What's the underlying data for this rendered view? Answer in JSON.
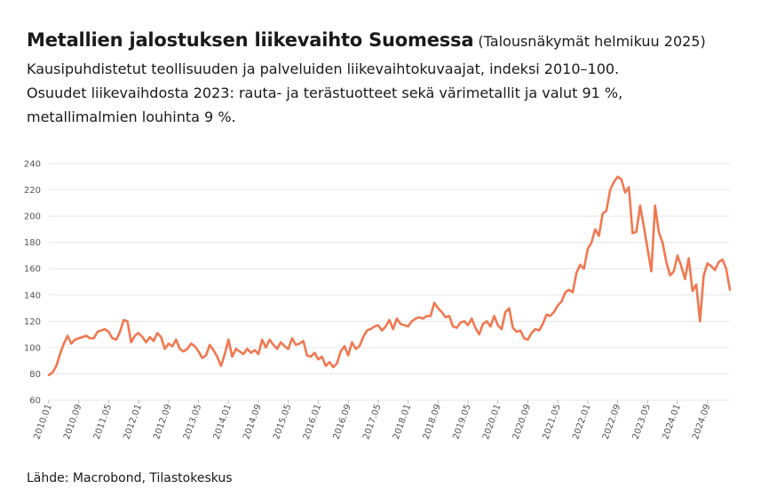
{
  "title": "Metallien jalostuksen liikevaihto Suomessa",
  "title_note": "(Talousnäkymät helmikuu 2025)",
  "subtitle_lines": [
    "Kausipuhdistetut teollisuuden ja palveluiden liikevaihtokuvaajat, indeksi 2010–100.",
    "Osuudet liikevaihdosta 2023: rauta- ja terästuotteet sekä värimetallit ja valut 91 %,",
    "metallimalmien louhinta 9 %."
  ],
  "footer": "Lähde: Macrobond, Tilastokeskus",
  "chart_data": {
    "type": "line",
    "line_color": "#f07850",
    "grid_color": "#e6e6e6",
    "grid": true,
    "ylim": [
      60,
      240
    ],
    "yticks": [
      60,
      80,
      100,
      120,
      140,
      160,
      180,
      200,
      220,
      240
    ],
    "xticks": [
      "2010.01",
      "2010.09",
      "2011.05",
      "2012.01",
      "2012.09",
      "2013.05",
      "2014.01",
      "2014.09",
      "2015.05",
      "2016.01",
      "2016.09",
      "2017.05",
      "2018.01",
      "2018.09",
      "2019.05",
      "2020.01",
      "2020.09",
      "2021.05",
      "2022.01",
      "2022.09",
      "2023.05",
      "2024.01",
      "2024.09"
    ],
    "x_start": "2010.01",
    "values": [
      79,
      81,
      86,
      95,
      103,
      109,
      103,
      106,
      107,
      108,
      109,
      107,
      107,
      112,
      113,
      114,
      112,
      107,
      106,
      112,
      121,
      120,
      104,
      109,
      111,
      108,
      104,
      108,
      105,
      111,
      108,
      99,
      103,
      101,
      106,
      99,
      97,
      99,
      103,
      101,
      97,
      92,
      94,
      102,
      98,
      93,
      86,
      95,
      106,
      93,
      99,
      97,
      95,
      99,
      96,
      98,
      95,
      106,
      100,
      106,
      102,
      99,
      104,
      101,
      99,
      107,
      102,
      103,
      105,
      94,
      93,
      96,
      91,
      93,
      86,
      89,
      85,
      88,
      97,
      101,
      94,
      104,
      99,
      101,
      108,
      113,
      114,
      116,
      117,
      113,
      116,
      121,
      114,
      122,
      118,
      117,
      116,
      120,
      122,
      123,
      122,
      124,
      124,
      134,
      130,
      127,
      123,
      124,
      116,
      115,
      119,
      120,
      117,
      122,
      115,
      110,
      118,
      120,
      116,
      124,
      117,
      114,
      127,
      130,
      115,
      112,
      113,
      107,
      106,
      111,
      114,
      113,
      118,
      125,
      124,
      127,
      132,
      135,
      142,
      144,
      142,
      157,
      163,
      160,
      175,
      180,
      190,
      185,
      202,
      204,
      220,
      226,
      230,
      228,
      218,
      222,
      187,
      188,
      208,
      192,
      175,
      158,
      208,
      188,
      180,
      165,
      155,
      158,
      170,
      162,
      152,
      168,
      143,
      148,
      120,
      155,
      164,
      162,
      159,
      165,
      167,
      160,
      144
    ]
  }
}
